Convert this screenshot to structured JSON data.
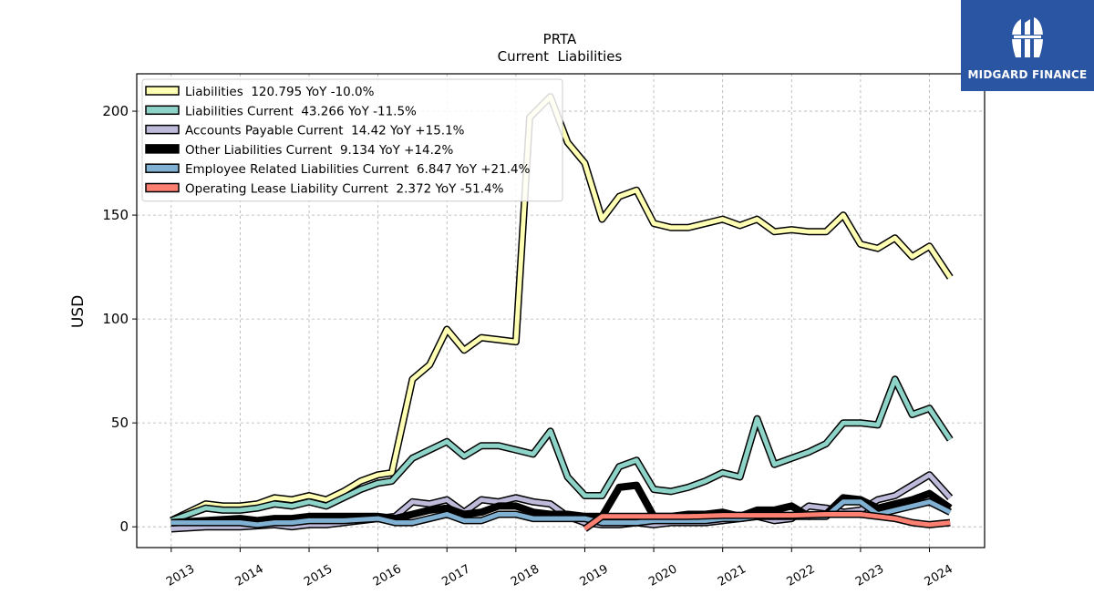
{
  "brand": {
    "name": "MIDGARD FINANCE",
    "icon": "midgard-logo-icon",
    "color": "#2a55a3"
  },
  "chart_data": {
    "type": "line",
    "title": "PRTA",
    "subtitle": "Current  Liabilities",
    "xlabel": "",
    "ylabel": "USD",
    "xlim": [
      2012.5,
      2024.8
    ],
    "ylim": [
      -10,
      218
    ],
    "yticks": [
      0,
      50,
      100,
      150,
      200
    ],
    "xticks": [
      "2013",
      "2014",
      "2015",
      "2016",
      "2017",
      "2018",
      "2019",
      "2020",
      "2021",
      "2022",
      "2023",
      "2024"
    ],
    "grid": true,
    "legend_position": "top-left",
    "series": [
      {
        "name": "Liabilities",
        "legend": "Liabilities  120.795 YoY -10.0%",
        "color": "#ffffb3",
        "width": 5,
        "points": [
          [
            2013.0,
            3
          ],
          [
            2013.5,
            11
          ],
          [
            2013.75,
            10
          ],
          [
            2014.0,
            10
          ],
          [
            2014.25,
            11
          ],
          [
            2014.5,
            14
          ],
          [
            2014.75,
            13
          ],
          [
            2015.0,
            15
          ],
          [
            2015.25,
            13
          ],
          [
            2015.5,
            17
          ],
          [
            2015.75,
            22
          ],
          [
            2016.0,
            25
          ],
          [
            2016.2,
            26
          ],
          [
            2016.5,
            71
          ],
          [
            2016.75,
            78
          ],
          [
            2017.0,
            95
          ],
          [
            2017.25,
            85
          ],
          [
            2017.5,
            91
          ],
          [
            2017.75,
            90
          ],
          [
            2018.0,
            89
          ],
          [
            2018.2,
            197
          ],
          [
            2018.5,
            207
          ],
          [
            2018.75,
            185
          ],
          [
            2019.0,
            175
          ],
          [
            2019.25,
            148
          ],
          [
            2019.5,
            159
          ],
          [
            2019.75,
            162
          ],
          [
            2020.0,
            146
          ],
          [
            2020.25,
            144
          ],
          [
            2020.5,
            144
          ],
          [
            2020.75,
            146
          ],
          [
            2021.0,
            148
          ],
          [
            2021.25,
            145
          ],
          [
            2021.5,
            148
          ],
          [
            2021.75,
            142
          ],
          [
            2022.0,
            143
          ],
          [
            2022.25,
            142
          ],
          [
            2022.5,
            142
          ],
          [
            2022.75,
            150
          ],
          [
            2023.0,
            136
          ],
          [
            2023.25,
            134
          ],
          [
            2023.5,
            139
          ],
          [
            2023.75,
            130
          ],
          [
            2024.0,
            135
          ],
          [
            2024.3,
            120
          ]
        ]
      },
      {
        "name": "Liabilities Current",
        "legend": "Liabilities Current  43.266 YoY -11.5%",
        "color": "#8dd3c7",
        "width": 5,
        "points": [
          [
            2013.0,
            3
          ],
          [
            2013.5,
            9
          ],
          [
            2013.75,
            8
          ],
          [
            2014.0,
            8
          ],
          [
            2014.25,
            9
          ],
          [
            2014.5,
            11
          ],
          [
            2014.75,
            10
          ],
          [
            2015.0,
            12
          ],
          [
            2015.25,
            10
          ],
          [
            2015.5,
            14
          ],
          [
            2015.75,
            18
          ],
          [
            2016.0,
            21
          ],
          [
            2016.2,
            22
          ],
          [
            2016.5,
            33
          ],
          [
            2016.75,
            37
          ],
          [
            2017.0,
            41
          ],
          [
            2017.25,
            34
          ],
          [
            2017.5,
            39
          ],
          [
            2017.75,
            39
          ],
          [
            2018.0,
            37
          ],
          [
            2018.25,
            35
          ],
          [
            2018.5,
            46
          ],
          [
            2018.75,
            24
          ],
          [
            2019.0,
            15
          ],
          [
            2019.25,
            15
          ],
          [
            2019.5,
            29
          ],
          [
            2019.75,
            32
          ],
          [
            2020.0,
            18
          ],
          [
            2020.25,
            17
          ],
          [
            2020.5,
            19
          ],
          [
            2020.75,
            22
          ],
          [
            2021.0,
            26
          ],
          [
            2021.25,
            24
          ],
          [
            2021.5,
            52
          ],
          [
            2021.75,
            30
          ],
          [
            2022.0,
            33
          ],
          [
            2022.25,
            36
          ],
          [
            2022.5,
            40
          ],
          [
            2022.75,
            50
          ],
          [
            2023.0,
            50
          ],
          [
            2023.25,
            49
          ],
          [
            2023.5,
            71
          ],
          [
            2023.75,
            54
          ],
          [
            2024.0,
            57
          ],
          [
            2024.3,
            42
          ]
        ]
      },
      {
        "name": "Accounts Payable Current",
        "legend": "Accounts Payable Current  14.42 YoY +15.1%",
        "color": "#bebada",
        "width": 5,
        "points": [
          [
            2013.0,
            -1
          ],
          [
            2013.5,
            0
          ],
          [
            2014.0,
            0
          ],
          [
            2014.5,
            1
          ],
          [
            2014.75,
            0
          ],
          [
            2015.0,
            1
          ],
          [
            2015.25,
            1
          ],
          [
            2015.5,
            2
          ],
          [
            2016.0,
            4
          ],
          [
            2016.25,
            5
          ],
          [
            2016.5,
            12
          ],
          [
            2016.75,
            11
          ],
          [
            2017.0,
            13
          ],
          [
            2017.25,
            7
          ],
          [
            2017.5,
            13
          ],
          [
            2017.75,
            12
          ],
          [
            2018.0,
            14
          ],
          [
            2018.25,
            12
          ],
          [
            2018.5,
            11
          ],
          [
            2018.75,
            5
          ],
          [
            2019.0,
            2
          ],
          [
            2019.25,
            1
          ],
          [
            2019.5,
            1
          ],
          [
            2019.75,
            2
          ],
          [
            2020.0,
            1
          ],
          [
            2020.25,
            2
          ],
          [
            2020.5,
            2
          ],
          [
            2020.75,
            2
          ],
          [
            2021.0,
            3
          ],
          [
            2021.25,
            4
          ],
          [
            2021.5,
            5
          ],
          [
            2021.75,
            3
          ],
          [
            2022.0,
            4
          ],
          [
            2022.25,
            10
          ],
          [
            2022.5,
            9
          ],
          [
            2022.75,
            7
          ],
          [
            2023.0,
            8
          ],
          [
            2023.25,
            13
          ],
          [
            2023.5,
            15
          ],
          [
            2023.75,
            20
          ],
          [
            2024.0,
            25
          ],
          [
            2024.3,
            14
          ]
        ]
      },
      {
        "name": "Other Liabilities Current",
        "legend": "Other Liabilities Current  9.134 YoY +14.2%",
        "color": "#000000",
        "width": 5,
        "points": [
          [
            2013.0,
            2
          ],
          [
            2013.5,
            3
          ],
          [
            2014.0,
            4
          ],
          [
            2014.25,
            3
          ],
          [
            2014.5,
            4
          ],
          [
            2014.75,
            4
          ],
          [
            2015.0,
            5
          ],
          [
            2015.25,
            5
          ],
          [
            2015.5,
            5
          ],
          [
            2016.0,
            5
          ],
          [
            2016.25,
            4
          ],
          [
            2016.5,
            6
          ],
          [
            2016.75,
            8
          ],
          [
            2017.0,
            9
          ],
          [
            2017.25,
            6
          ],
          [
            2017.5,
            7
          ],
          [
            2017.75,
            10
          ],
          [
            2018.0,
            10
          ],
          [
            2018.25,
            7
          ],
          [
            2018.5,
            6
          ],
          [
            2018.75,
            6
          ],
          [
            2019.0,
            5
          ],
          [
            2019.25,
            5
          ],
          [
            2019.5,
            19
          ],
          [
            2019.75,
            20
          ],
          [
            2020.0,
            5
          ],
          [
            2020.25,
            5
          ],
          [
            2020.5,
            6
          ],
          [
            2020.75,
            6
          ],
          [
            2021.0,
            7
          ],
          [
            2021.25,
            5
          ],
          [
            2021.5,
            8
          ],
          [
            2021.75,
            8
          ],
          [
            2022.0,
            10
          ],
          [
            2022.25,
            5
          ],
          [
            2022.5,
            6
          ],
          [
            2022.75,
            14
          ],
          [
            2023.0,
            13
          ],
          [
            2023.25,
            9
          ],
          [
            2023.5,
            11
          ],
          [
            2023.75,
            13
          ],
          [
            2024.0,
            16
          ],
          [
            2024.3,
            9
          ]
        ]
      },
      {
        "name": "Employee Related Liabilities Current",
        "legend": "Employee Related Liabilities Current  6.847 YoY +21.4%",
        "color": "#80b1d3",
        "width": 5,
        "points": [
          [
            2013.0,
            2
          ],
          [
            2013.5,
            2
          ],
          [
            2014.0,
            2
          ],
          [
            2014.25,
            1
          ],
          [
            2014.5,
            2
          ],
          [
            2014.75,
            2
          ],
          [
            2015.0,
            3
          ],
          [
            2015.25,
            3
          ],
          [
            2015.5,
            3
          ],
          [
            2016.0,
            4
          ],
          [
            2016.25,
            2
          ],
          [
            2016.5,
            2
          ],
          [
            2016.75,
            4
          ],
          [
            2017.0,
            6
          ],
          [
            2017.25,
            3
          ],
          [
            2017.5,
            3
          ],
          [
            2017.75,
            6
          ],
          [
            2018.0,
            6
          ],
          [
            2018.25,
            4
          ],
          [
            2018.5,
            4
          ],
          [
            2018.75,
            4
          ],
          [
            2019.0,
            4
          ],
          [
            2019.25,
            2
          ],
          [
            2019.5,
            2
          ],
          [
            2019.75,
            2
          ],
          [
            2020.0,
            3
          ],
          [
            2020.25,
            3
          ],
          [
            2020.5,
            3
          ],
          [
            2020.75,
            3
          ],
          [
            2021.0,
            4
          ],
          [
            2021.25,
            4
          ],
          [
            2021.5,
            5
          ],
          [
            2021.75,
            5
          ],
          [
            2022.0,
            5
          ],
          [
            2022.25,
            5
          ],
          [
            2022.5,
            5
          ],
          [
            2022.75,
            12
          ],
          [
            2023.0,
            12
          ],
          [
            2023.25,
            6
          ],
          [
            2023.5,
            8
          ],
          [
            2023.75,
            10
          ],
          [
            2024.0,
            12
          ],
          [
            2024.3,
            7
          ]
        ]
      },
      {
        "name": "Operating Lease Liability Current",
        "legend": "Operating Lease Liability Current  2.372 YoY -51.4%",
        "color": "#fb8072",
        "width": 5,
        "points": [
          [
            2019.0,
            -1
          ],
          [
            2019.25,
            5
          ],
          [
            2019.5,
            5
          ],
          [
            2019.75,
            5
          ],
          [
            2020.0,
            5
          ],
          [
            2020.5,
            5
          ],
          [
            2021.0,
            5.5
          ],
          [
            2021.5,
            5.5
          ],
          [
            2022.0,
            5.5
          ],
          [
            2022.5,
            6
          ],
          [
            2023.0,
            6
          ],
          [
            2023.25,
            5
          ],
          [
            2023.5,
            4
          ],
          [
            2023.75,
            2
          ],
          [
            2024.0,
            1
          ],
          [
            2024.3,
            2
          ]
        ]
      }
    ]
  }
}
